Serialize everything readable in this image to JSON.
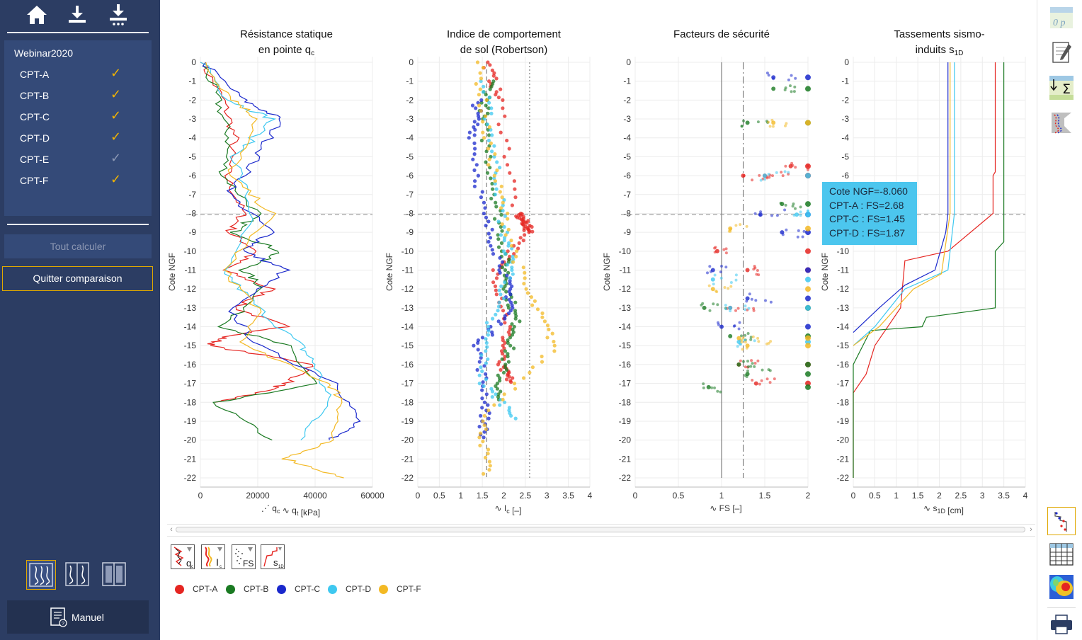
{
  "sidebar": {
    "project": "Webinar2020",
    "cpts": [
      {
        "label": "CPT-A",
        "checked": true
      },
      {
        "label": "CPT-B",
        "checked": true
      },
      {
        "label": "CPT-C",
        "checked": true
      },
      {
        "label": "CPT-D",
        "checked": true
      },
      {
        "label": "CPT-E",
        "checked": false
      },
      {
        "label": "CPT-F",
        "checked": true
      }
    ],
    "calc_all_label": "Tout calculer",
    "quit_compare_label": "Quitter comparaison",
    "manual_label": "Manuel",
    "top_icons": [
      "home-icon",
      "import-icon",
      "import-multiple-icon"
    ],
    "layout_icons": [
      "layout-overlay-icon",
      "layout-split-icon",
      "layout-columns-icon"
    ]
  },
  "colors": {
    "CPT-A": "#e52521",
    "CPT-B": "#1a7a22",
    "CPT-C": "#1a28cc",
    "CPT-D": "#3ec8f0",
    "CPT-F": "#f3b924",
    "accent": "#e0a800",
    "sidebar": "#2c3d63"
  },
  "charts": [
    {
      "title_line1": "Résistance statique",
      "title_line2": "en pointe q",
      "title_sub": "c",
      "ylabel": "Cote NGF",
      "xticks": [
        "0",
        "20000",
        "40000",
        "60000"
      ],
      "xlabel_a": "q",
      "xlabel_a_sub": "c",
      "xlabel_b": "q",
      "xlabel_b_sub": "t",
      "xlabel_unit": "[kPa]"
    },
    {
      "title_line1": "Indice de comportement",
      "title_line2": "de sol (Robertson)",
      "title_sub": "",
      "ylabel": "Cote NGF",
      "xticks": [
        "0",
        "0.5",
        "1",
        "1.5",
        "2",
        "2.5",
        "3",
        "3.5",
        "4"
      ],
      "xlabel_b": "I",
      "xlabel_b_sub": "c",
      "xlabel_unit": "[–]"
    },
    {
      "title_line1": "Facteurs de sécurité",
      "title_line2": "",
      "title_sub": "",
      "ylabel": "Cote NGF",
      "xticks": [
        "0",
        "0.5",
        "1",
        "1.5",
        "2"
      ],
      "xlabel_b": "FS",
      "xlabel_b_sub": "",
      "xlabel_unit": "[–]"
    },
    {
      "title_line1": "Tassements sismo-",
      "title_line2": "induits s",
      "title_sub": "1D",
      "ylabel": "Cote NGF",
      "xticks": [
        "0",
        "0.5",
        "1",
        "1.5",
        "2",
        "2.5",
        "3",
        "3.5",
        "4"
      ],
      "xlabel_b": "s",
      "xlabel_b_sub": "1D",
      "xlabel_unit": "[cm]"
    }
  ],
  "yticks": [
    "0",
    "-1",
    "-2",
    "-3",
    "-4",
    "-5",
    "-6",
    "-7",
    "-8",
    "-9",
    "-10",
    "-11",
    "-12",
    "-13",
    "-14",
    "-15",
    "-16",
    "-17",
    "-18",
    "-19",
    "-20",
    "-21",
    "-22"
  ],
  "cursor_depth": -8.06,
  "tooltip": {
    "line1": "Cote NGF=-8.060",
    "line2": "CPT-A : FS=2.68",
    "line3": "CPT-C : FS=1.45",
    "line4": "CPT-D : FS=1.87"
  },
  "legend": [
    "CPT-A",
    "CPT-B",
    "CPT-C",
    "CPT-D",
    "CPT-F"
  ],
  "plot_selector_icons": [
    "qc-plot-icon",
    "ic-plot-icon",
    "fs-plot-icon",
    "s1d-plot-icon"
  ],
  "right_toolbar_icons": [
    "parameters-icon",
    "edit-data-icon",
    "sum-icon",
    "profile-icon",
    "chart-view-icon",
    "table-view-icon",
    "map-view-icon",
    "print-icon"
  ],
  "chart_data": [
    {
      "type": "line",
      "title": "Résistance statique en pointe qc",
      "ylabel": "Cote NGF",
      "xlabel": "qc  qt [kPa]",
      "xlim": [
        0,
        60000
      ],
      "ylim": [
        -22,
        0
      ],
      "series": [
        {
          "name": "CPT-A",
          "x": [
            500,
            8000,
            12000,
            9000,
            15000,
            10000,
            20000,
            8000,
            25000,
            12000,
            30000,
            9000,
            3000,
            40000,
            30000,
            20000,
            5000
          ],
          "y": [
            0,
            -2,
            -4,
            -6,
            -8,
            -9,
            -10,
            -11,
            -12,
            -13,
            -14,
            -14.5,
            -15,
            -16,
            -17,
            -17.5,
            -18
          ]
        },
        {
          "name": "CPT-B",
          "x": [
            1000,
            6000,
            10000,
            8000,
            20000,
            12000,
            28000,
            15000,
            22000,
            8000,
            30000,
            40000,
            5000,
            25000
          ],
          "y": [
            0,
            -2,
            -4,
            -6,
            -8,
            -9,
            -10,
            -11,
            -12,
            -14,
            -15,
            -17,
            -18,
            -20
          ]
        },
        {
          "name": "CPT-C",
          "x": [
            800,
            15000,
            28000,
            20000,
            10000,
            25000,
            15000,
            30000,
            10000,
            20000,
            48000,
            55000,
            45000
          ],
          "y": [
            0,
            -2,
            -3,
            -5,
            -7,
            -9,
            -10,
            -11,
            -13,
            -15,
            -17,
            -19,
            -20
          ]
        },
        {
          "name": "CPT-D",
          "x": [
            1200,
            10000,
            25000,
            12000,
            18000,
            8000,
            20000,
            35000,
            40000,
            45000,
            35000
          ],
          "y": [
            0,
            -2,
            -3,
            -5,
            -8,
            -11,
            -13,
            -15,
            -16,
            -18,
            -20
          ]
        },
        {
          "name": "CPT-F",
          "x": [
            600,
            12000,
            20000,
            10000,
            25000,
            8000,
            20000,
            15000,
            45000,
            50000,
            45000,
            30000,
            50000
          ],
          "y": [
            0,
            -2,
            -3,
            -6,
            -8,
            -11,
            -13,
            -15,
            -17,
            -18,
            -20,
            -21,
            -22
          ]
        }
      ]
    },
    {
      "type": "scatter",
      "title": "Indice de comportement de sol (Robertson)",
      "ylabel": "Cote NGF",
      "xlabel": "Ic [–]",
      "xlim": [
        0,
        4
      ],
      "ylim": [
        -22,
        0
      ],
      "reference_lines": [
        1.6,
        2.6
      ],
      "series": [
        {
          "name": "CPT-A",
          "x": [
            1.6,
            1.9,
            2.3,
            2.5,
            2.6,
            1.8,
            2.1,
            1.9,
            2.2
          ],
          "y": [
            0,
            -2,
            -8,
            -8.5,
            -9,
            -11,
            -14,
            -16,
            -17
          ]
        },
        {
          "name": "CPT-B",
          "x": [
            1.7,
            1.5,
            1.8,
            2.0,
            2.1,
            2.3,
            2.0,
            1.8
          ],
          "y": [
            -1,
            -3,
            -7,
            -10,
            -12,
            -14,
            -16,
            -18
          ]
        },
        {
          "name": "CPT-C",
          "x": [
            1.4,
            1.3,
            1.5,
            2.0,
            2.2,
            1.4,
            1.6,
            1.5
          ],
          "y": [
            -2,
            -4,
            -8,
            -11,
            -13,
            -15,
            -18,
            -20
          ]
        },
        {
          "name": "CPT-D",
          "x": [
            1.5,
            1.8,
            2.0,
            2.2,
            1.6,
            1.5,
            2.4
          ],
          "y": [
            -1,
            -5,
            -9,
            -11,
            -14,
            -17,
            -19
          ]
        },
        {
          "name": "CPT-F",
          "x": [
            1.4,
            1.6,
            2.0,
            2.5,
            3.2,
            1.5,
            1.6
          ],
          "y": [
            0,
            -4,
            -8,
            -12,
            -15,
            -19,
            -22
          ]
        }
      ]
    },
    {
      "type": "scatter",
      "title": "Facteurs de sécurité",
      "ylabel": "Cote NGF",
      "xlabel": "FS [–]",
      "xlim": [
        0,
        2
      ],
      "ylim": [
        -22,
        0
      ],
      "reference_lines": [
        1.0,
        1.25
      ],
      "series": [
        {
          "name": "CPT-A",
          "x": [
            1.25,
            1.5,
            1.8,
            0.95,
            1.3,
            1.1,
            1.2,
            1.4
          ],
          "y": [
            -6,
            -6,
            -5.5,
            -10,
            -11,
            -13,
            -16,
            -17
          ]
        },
        {
          "name": "CPT-B",
          "x": [
            1.6,
            1.3,
            1.7,
            0.8,
            1.1,
            1.2,
            1.3,
            0.85
          ],
          "y": [
            -1.4,
            -3.2,
            -7.5,
            -13,
            -14.5,
            -16,
            -16.5,
            -17.2
          ]
        },
        {
          "name": "CPT-C",
          "x": [
            1.6,
            1.45,
            1.7,
            0.9,
            1.3,
            1.0
          ],
          "y": [
            -0.8,
            -8.06,
            -9,
            -11,
            -12.5,
            -14
          ]
        },
        {
          "name": "CPT-D",
          "x": [
            1.87,
            1.5,
            0.9,
            1.1,
            1.2
          ],
          "y": [
            -8.06,
            -6,
            -11.5,
            -13,
            -14.8
          ]
        },
        {
          "name": "CPT-F",
          "x": [
            1.6,
            1.1,
            0.9,
            1.3,
            1.2
          ],
          "y": [
            -3.2,
            -8.8,
            -12,
            -15,
            -14.6
          ]
        }
      ]
    },
    {
      "type": "line",
      "title": "Tassements sismo-induits s1D",
      "ylabel": "Cote NGF",
      "xlabel": "s1D [cm]",
      "xlim": [
        0,
        4
      ],
      "ylim": [
        -22,
        0
      ],
      "series": [
        {
          "name": "CPT-A",
          "x": [
            3.3,
            3.3,
            3.25,
            3.25,
            2.2,
            1.2,
            1.1,
            0.5,
            0.3,
            0.0,
            0.0
          ],
          "y": [
            0,
            -5.8,
            -6.0,
            -8.0,
            -10,
            -10.5,
            -13,
            -15,
            -16.5,
            -17.5,
            -22
          ]
        },
        {
          "name": "CPT-B",
          "x": [
            3.5,
            3.5,
            3.3,
            3.3,
            1.7,
            1.6,
            0.4,
            0.0,
            0.0
          ],
          "y": [
            0,
            -9.5,
            -10,
            -13,
            -13.5,
            -14,
            -14.2,
            -16,
            -22
          ]
        },
        {
          "name": "CPT-C",
          "x": [
            2.2,
            2.2,
            2.15,
            1.9,
            1.2,
            0.6,
            0.0
          ],
          "y": [
            0,
            -8,
            -9,
            -11,
            -11.8,
            -13,
            -14.3
          ]
        },
        {
          "name": "CPT-D",
          "x": [
            2.35,
            2.35,
            2.2,
            1.2,
            0.5,
            0.0
          ],
          "y": [
            0,
            -8,
            -11,
            -12,
            -14,
            -15
          ]
        },
        {
          "name": "CPT-F",
          "x": [
            2.25,
            2.25,
            2.05,
            1.4,
            0.6,
            0.0
          ],
          "y": [
            0,
            -8,
            -11.2,
            -12,
            -14,
            -15
          ]
        }
      ]
    }
  ]
}
